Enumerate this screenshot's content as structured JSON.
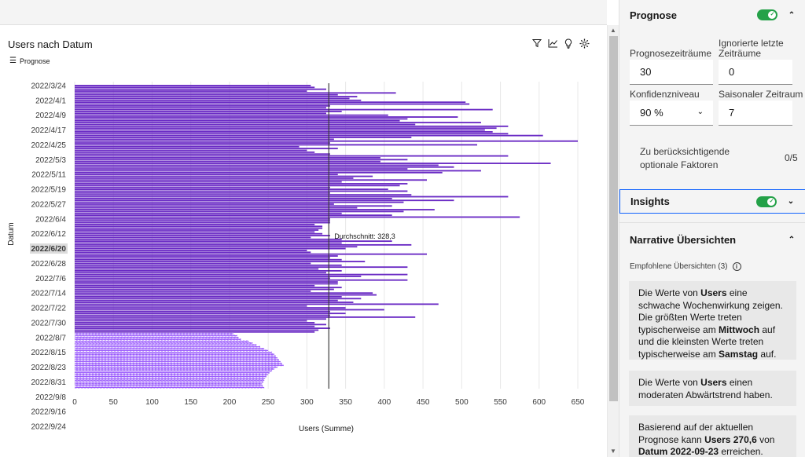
{
  "chart": {
    "title": "Users nach Datum",
    "forecast_link": "Prognose",
    "toolbar_icons": [
      "filter-icon",
      "line-chart-icon",
      "lightbulb-icon",
      "settings-icon"
    ]
  },
  "chart_data": {
    "type": "bar",
    "orientation": "horizontal",
    "xlabel": "Users (Summe)",
    "ylabel": "Datum",
    "xlim": [
      0,
      650
    ],
    "x_ticks": [
      0,
      50,
      100,
      150,
      200,
      250,
      300,
      350,
      400,
      450,
      500,
      550,
      600,
      650
    ],
    "y_ticks": [
      "2022/3/24",
      "2022/4/1",
      "2022/4/9",
      "2022/4/17",
      "2022/4/25",
      "2022/5/3",
      "2022/5/11",
      "2022/5/19",
      "2022/5/27",
      "2022/6/4",
      "2022/6/12",
      "2022/6/20",
      "2022/6/28",
      "2022/7/6",
      "2022/7/14",
      "2022/7/22",
      "2022/7/30",
      "2022/8/7",
      "2022/8/15",
      "2022/8/23",
      "2022/8/31",
      "2022/9/8",
      "2022/9/16",
      "2022/9/24"
    ],
    "highlighted_tick": "2022/6/20",
    "average_label": "Durchschnitt: 328,3",
    "average_value": 328.3,
    "bar_color": "#6929c4",
    "forecast_bar_color": "#8a3ffc",
    "actual_values": [
      305,
      310,
      325,
      300,
      415,
      340,
      365,
      355,
      370,
      505,
      510,
      330,
      325,
      540,
      345,
      325,
      405,
      495,
      430,
      420,
      525,
      440,
      560,
      545,
      530,
      540,
      560,
      605,
      435,
      335,
      650,
      330,
      520,
      290,
      340,
      300,
      310,
      330,
      560,
      395,
      430,
      395,
      615,
      470,
      490,
      430,
      525,
      475,
      340,
      385,
      360,
      455,
      345,
      430,
      420,
      330,
      405,
      430,
      330,
      435,
      560,
      410,
      490,
      425,
      335,
      410,
      365,
      465,
      425,
      345,
      410,
      575,
      330,
      330,
      330,
      310,
      320,
      320,
      315,
      310,
      320,
      330,
      305,
      345,
      410,
      345,
      435,
      365,
      350,
      300,
      305,
      455,
      340,
      330,
      345,
      375,
      305,
      345,
      430,
      315,
      345,
      325,
      430,
      370,
      330,
      430,
      340,
      340,
      310,
      345,
      335,
      305,
      385,
      390,
      345,
      370,
      340,
      360,
      470,
      300,
      350,
      400,
      330,
      350,
      330,
      440,
      325,
      300,
      310,
      325,
      310,
      330,
      315,
      310
    ],
    "forecast_values": [
      205,
      210,
      212,
      215,
      225,
      230,
      235,
      240,
      245,
      250,
      255,
      258,
      260,
      262,
      264,
      266,
      268,
      270,
      262,
      258,
      255,
      252,
      250,
      248,
      246,
      245,
      244,
      242,
      243,
      245
    ]
  },
  "panel": {
    "prognose": {
      "title": "Prognose",
      "enabled": true,
      "fields": {
        "periods_label": "Prognosezeiträume",
        "periods_value": "30",
        "ignored_label": "Ignorierte letzte Zeiträume",
        "ignored_value": "0",
        "confidence_label": "Konfidenzniveau",
        "confidence_value": "90 %",
        "season_label": "Saisonaler Zeitraum",
        "season_value": "7"
      },
      "optional_factors_label": "Zu berücksichtigende optionale Faktoren",
      "optional_factors_count": "0/5"
    },
    "insights": {
      "title": "Insights",
      "enabled": true
    },
    "narrative": {
      "title": "Narrative Übersichten",
      "recommended_label": "Empfohlene Übersichten (3)",
      "cards": [
        {
          "p1": "Die Werte von ",
          "b1": "Users",
          "p2": " eine schwache Wochenwirkung zeigen. Die größten Werte treten typischerweise am ",
          "b2": "Mittwoch",
          "p3": " auf und die kleinsten Werte treten typischerweise am ",
          "b3": "Samstag",
          "p4": " auf."
        },
        {
          "p1": "Die Werte von ",
          "b1": "Users",
          "p2": " einen moderaten Abwärtstrend haben."
        },
        {
          "p1": "Basierend auf der aktuellen Prognose kann ",
          "b1": "Users 270,6",
          "p2": " von ",
          "b2": "Datum 2022-09-23",
          "p3": " erreichen."
        }
      ]
    }
  },
  "colors": {
    "accent": "#0f62fe",
    "toggle_on": "#24a148",
    "bar": "#6929c4"
  }
}
